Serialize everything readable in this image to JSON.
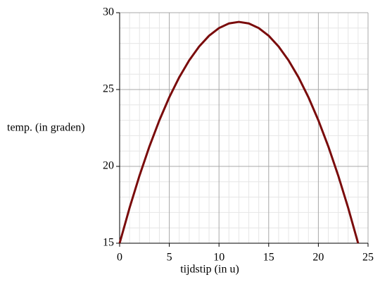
{
  "chart_data": {
    "type": "line",
    "x_label": "tijdstip (in u)",
    "y_label": "temp. (in graden)",
    "x": [
      0,
      1,
      2,
      3,
      4,
      5,
      6,
      7,
      8,
      9,
      10,
      11,
      12,
      13,
      14,
      15,
      16,
      17,
      18,
      19,
      20,
      21,
      22,
      23,
      24
    ],
    "series": [
      {
        "color": "#7a0b0b",
        "values": [
          15,
          17.3,
          19.4,
          21.3,
          23.0,
          24.5,
          25.8,
          26.9,
          27.8,
          28.5,
          29.0,
          29.3,
          29.4,
          29.3,
          29.0,
          28.5,
          27.8,
          26.9,
          25.8,
          24.5,
          23.0,
          21.3,
          19.4,
          17.3,
          15
        ]
      }
    ],
    "xlim": [
      0,
      25
    ],
    "xticks": [
      0,
      5,
      10,
      15,
      20,
      25
    ],
    "ylim": [
      15,
      30
    ],
    "yticks": [
      15,
      20,
      25,
      30
    ],
    "grid": true
  }
}
